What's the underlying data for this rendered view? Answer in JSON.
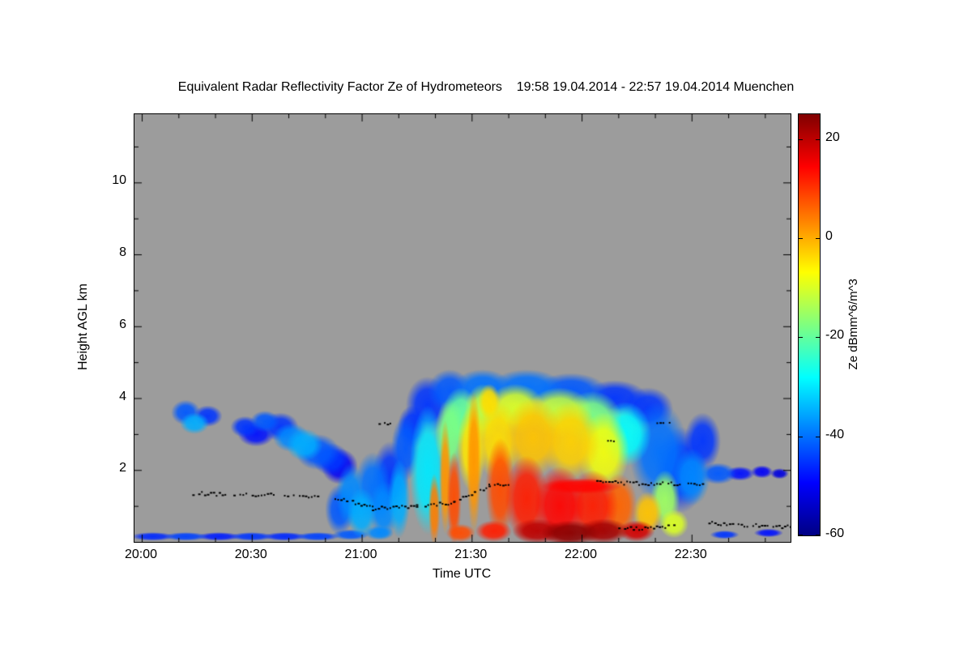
{
  "title": "Equivalent Radar Reflectivity Factor Ze of Hydrometeors    19:58 19.04.2014 - 22:57 19.04.2014 Muenchen",
  "plot": {
    "bg_color": "#9c9c9c",
    "frame_color": "#000000"
  },
  "axes": {
    "x": {
      "label": "Time UTC",
      "tmin_hours": 19.9667,
      "tmax_hours": 22.95,
      "major_ticks": [
        {
          "t": 20.0,
          "label": "20:00"
        },
        {
          "t": 20.5,
          "label": "20:30"
        },
        {
          "t": 21.0,
          "label": "21:00"
        },
        {
          "t": 21.5,
          "label": "21:30"
        },
        {
          "t": 22.0,
          "label": "22:00"
        },
        {
          "t": 22.5,
          "label": "22:30"
        }
      ],
      "minor_step_hours": 0.166667
    },
    "y": {
      "label": "Height AGL km",
      "min_km": 0,
      "max_km": 11.9,
      "major_ticks": [
        2,
        4,
        6,
        8,
        10
      ],
      "minor_ticks": [
        1,
        3,
        5,
        7,
        9,
        11
      ]
    }
  },
  "colorbar": {
    "label": "Ze dBmm^6/m^3",
    "vmin": -60,
    "vmax": 25,
    "ticks": [
      20,
      0,
      -20,
      -40,
      -60
    ],
    "colormap": [
      [
        0.0,
        "#000083"
      ],
      [
        0.125,
        "#0000ff"
      ],
      [
        0.375,
        "#00ffff"
      ],
      [
        0.625,
        "#ffff00"
      ],
      [
        0.875,
        "#ff0000"
      ],
      [
        1.0,
        "#800000"
      ]
    ]
  },
  "chart_data": {
    "type": "heatmap",
    "title": "Equivalent Radar Reflectivity Factor Ze of Hydrometeors",
    "subtitle": "19:58 19.04.2014 - 22:57 19.04.2014 Muenchen",
    "xlabel": "Time UTC",
    "ylabel": "Height AGL km",
    "value_label": "Ze dBmm^6/m^3",
    "x_range_hours_utc": [
      19.9667,
      22.95
    ],
    "y_range_km": [
      0,
      11.9
    ],
    "value_range_dbz": [
      -60,
      25
    ],
    "cells_format": [
      "time_utc_hours",
      "height_km",
      "ze_dbz",
      "radius_minutes",
      "radius_km"
    ],
    "cells": [
      [
        20.2,
        3.6,
        -42,
        4,
        0.35
      ],
      [
        20.24,
        3.3,
        -35,
        4,
        0.3
      ],
      [
        20.3,
        3.5,
        -45,
        4,
        0.3
      ],
      [
        20.47,
        3.2,
        -45,
        4,
        0.3
      ],
      [
        20.52,
        3.0,
        -48,
        5,
        0.35
      ],
      [
        20.56,
        3.35,
        -42,
        4,
        0.3
      ],
      [
        20.63,
        3.2,
        -45,
        5,
        0.4
      ],
      [
        20.68,
        2.9,
        -38,
        5,
        0.4
      ],
      [
        20.74,
        2.7,
        -35,
        5,
        0.45
      ],
      [
        20.8,
        2.5,
        -42,
        6,
        0.5
      ],
      [
        20.86,
        2.3,
        -45,
        5,
        0.45
      ],
      [
        20.9,
        2.1,
        -50,
        5,
        0.5
      ],
      [
        20.9,
        0.9,
        -42,
        4,
        0.7
      ],
      [
        20.95,
        1.3,
        -38,
        4,
        0.9
      ],
      [
        21.0,
        0.8,
        -35,
        4,
        0.7
      ],
      [
        21.05,
        1.5,
        -40,
        5,
        1.0
      ],
      [
        21.1,
        0.9,
        -38,
        4,
        0.8
      ],
      [
        21.13,
        1.8,
        -45,
        5,
        1.0
      ],
      [
        21.17,
        1.2,
        -35,
        3,
        1.1
      ],
      [
        21.2,
        2.6,
        -42,
        4,
        0.9
      ],
      [
        21.23,
        3.2,
        -45,
        4,
        0.6
      ],
      [
        21.3,
        3.8,
        -45,
        6,
        0.8
      ],
      [
        21.4,
        4.2,
        -42,
        6,
        0.6
      ],
      [
        21.55,
        4.3,
        -40,
        8,
        0.5
      ],
      [
        21.75,
        4.3,
        -40,
        10,
        0.5
      ],
      [
        21.95,
        4.2,
        -42,
        10,
        0.5
      ],
      [
        22.15,
        4.0,
        -45,
        9,
        0.5
      ],
      [
        22.3,
        3.7,
        -45,
        7,
        0.6
      ],
      [
        21.3,
        2.0,
        -30,
        5,
        1.8
      ],
      [
        22.35,
        2.5,
        -40,
        8,
        1.4
      ],
      [
        22.45,
        2.0,
        -45,
        7,
        1.2
      ],
      [
        21.45,
        3.5,
        -20,
        5,
        0.8
      ],
      [
        21.55,
        3.6,
        -12,
        5,
        0.8
      ],
      [
        21.7,
        3.7,
        -10,
        8,
        0.7
      ],
      [
        21.9,
        3.6,
        -12,
        9,
        0.7
      ],
      [
        22.05,
        3.4,
        -18,
        8,
        0.8
      ],
      [
        22.2,
        3.0,
        -28,
        7,
        0.9
      ],
      [
        21.4,
        3.0,
        -18,
        4,
        1.0
      ],
      [
        21.5,
        2.6,
        -5,
        4,
        1.2
      ],
      [
        21.62,
        2.8,
        -4,
        6,
        1.1
      ],
      [
        21.78,
        2.9,
        -2,
        8,
        1.1
      ],
      [
        21.95,
        2.8,
        -3,
        8,
        1.1
      ],
      [
        22.1,
        2.5,
        -8,
        7,
        1.1
      ],
      [
        21.33,
        0.9,
        4,
        1.6,
        1.0
      ],
      [
        21.38,
        1.8,
        2,
        1.6,
        1.6
      ],
      [
        21.42,
        1.2,
        8,
        2,
        1.3
      ],
      [
        21.51,
        2.2,
        2,
        2,
        2.0
      ],
      [
        21.58,
        3.9,
        -4,
        3,
        0.5
      ],
      [
        21.63,
        1.5,
        8,
        4,
        1.4
      ],
      [
        21.75,
        1.2,
        12,
        6,
        1.2
      ],
      [
        21.9,
        1.0,
        14,
        7,
        1.1
      ],
      [
        22.05,
        1.0,
        12,
        7,
        1.0
      ],
      [
        22.17,
        1.0,
        6,
        5,
        0.9
      ],
      [
        22.0,
        1.55,
        14,
        11,
        0.22
      ],
      [
        21.8,
        0.3,
        20,
        7,
        0.35
      ],
      [
        21.95,
        0.25,
        24,
        8,
        0.35
      ],
      [
        22.1,
        0.3,
        22,
        7,
        0.35
      ],
      [
        22.25,
        0.3,
        18,
        5,
        0.3
      ],
      [
        21.6,
        0.3,
        12,
        5,
        0.3
      ],
      [
        21.45,
        0.25,
        8,
        4,
        0.25
      ],
      [
        22.3,
        0.8,
        -2,
        4,
        0.6
      ],
      [
        22.38,
        1.2,
        -15,
        4,
        0.8
      ],
      [
        22.42,
        0.5,
        -10,
        4,
        0.4
      ],
      [
        22.5,
        1.8,
        -38,
        5,
        0.8
      ],
      [
        22.55,
        2.8,
        -45,
        5,
        0.8
      ],
      [
        22.62,
        1.9,
        -42,
        5,
        0.3
      ],
      [
        22.72,
        1.9,
        -48,
        4,
        0.2
      ],
      [
        22.82,
        1.95,
        -50,
        3,
        0.18
      ],
      [
        22.9,
        1.9,
        -52,
        2.5,
        0.15
      ],
      [
        20.05,
        0.15,
        -46,
        6,
        0.12
      ],
      [
        20.2,
        0.15,
        -44,
        6,
        0.12
      ],
      [
        20.35,
        0.15,
        -47,
        6,
        0.12
      ],
      [
        20.5,
        0.15,
        -45,
        6,
        0.12
      ],
      [
        20.65,
        0.15,
        -46,
        6,
        0.12
      ],
      [
        20.8,
        0.15,
        -44,
        6,
        0.12
      ],
      [
        20.95,
        0.2,
        -42,
        5,
        0.15
      ],
      [
        21.08,
        0.25,
        -38,
        4,
        0.2
      ],
      [
        22.65,
        0.2,
        -45,
        4,
        0.12
      ],
      [
        22.85,
        0.25,
        -48,
        4,
        0.12
      ]
    ],
    "black_dot_tracks_format": [
      "t_start_hours",
      "t_end_hours",
      "height_start_km",
      "height_end_km"
    ],
    "black_dot_tracks": [
      [
        20.22,
        20.38,
        1.35,
        1.32
      ],
      [
        20.42,
        20.6,
        1.32,
        1.3
      ],
      [
        20.65,
        20.8,
        1.28,
        1.25
      ],
      [
        20.88,
        21.05,
        1.22,
        0.95
      ],
      [
        21.05,
        21.25,
        0.92,
        1.0
      ],
      [
        21.25,
        21.42,
        1.0,
        1.08
      ],
      [
        21.42,
        21.58,
        1.1,
        1.55
      ],
      [
        21.58,
        21.68,
        1.55,
        1.6
      ],
      [
        22.07,
        22.33,
        1.65,
        1.62
      ],
      [
        22.33,
        22.55,
        1.62,
        1.6
      ],
      [
        22.17,
        22.42,
        0.35,
        0.42
      ],
      [
        22.58,
        22.78,
        0.52,
        0.45
      ],
      [
        22.78,
        22.95,
        0.45,
        0.42
      ],
      [
        21.08,
        21.13,
        3.32,
        3.3
      ],
      [
        22.33,
        22.4,
        3.3,
        3.28
      ],
      [
        22.12,
        22.16,
        2.85,
        2.82
      ]
    ]
  }
}
